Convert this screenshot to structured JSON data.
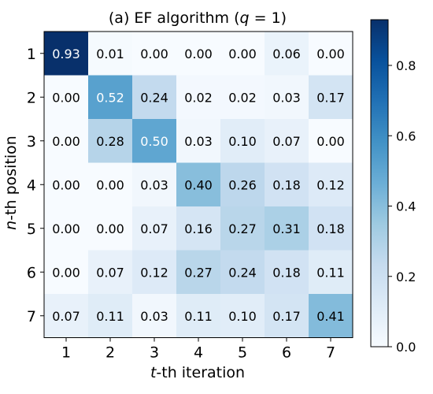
{
  "chart_data": {
    "type": "heatmap",
    "title": "(a) EF algorithm (q = 1)",
    "title_parts": {
      "prefix": "(a) EF algorithm (",
      "var": "q",
      "suffix": " = 1)"
    },
    "xlabel": {
      "var": "t",
      "text": "-th iteration"
    },
    "ylabel": {
      "var": "n",
      "text": "-th position"
    },
    "x_categories": [
      "1",
      "2",
      "3",
      "4",
      "5",
      "6",
      "7"
    ],
    "y_categories": [
      "1",
      "2",
      "3",
      "4",
      "5",
      "6",
      "7"
    ],
    "values": [
      [
        0.93,
        0.01,
        0.0,
        0.0,
        0.0,
        0.06,
        0.0
      ],
      [
        0.0,
        0.52,
        0.24,
        0.02,
        0.02,
        0.03,
        0.17
      ],
      [
        0.0,
        0.28,
        0.5,
        0.03,
        0.1,
        0.07,
        0.0
      ],
      [
        0.0,
        0.0,
        0.03,
        0.4,
        0.26,
        0.18,
        0.12
      ],
      [
        0.0,
        0.0,
        0.07,
        0.16,
        0.27,
        0.31,
        0.18
      ],
      [
        0.0,
        0.07,
        0.12,
        0.27,
        0.24,
        0.18,
        0.11
      ],
      [
        0.07,
        0.11,
        0.03,
        0.11,
        0.1,
        0.17,
        0.41
      ]
    ],
    "value_format": "2 decimals",
    "colormap": "Blues",
    "colorbar": {
      "range": [
        0.0,
        0.93
      ],
      "ticks": [
        0.0,
        0.2,
        0.4,
        0.6,
        0.8
      ],
      "tick_labels": [
        "0.0",
        "0.2",
        "0.4",
        "0.6",
        "0.8"
      ]
    },
    "grid": false
  },
  "colors": {
    "low": "#f7fbff",
    "high": "#08306b",
    "text_dark": "#000000",
    "text_light": "#ffffff"
  }
}
